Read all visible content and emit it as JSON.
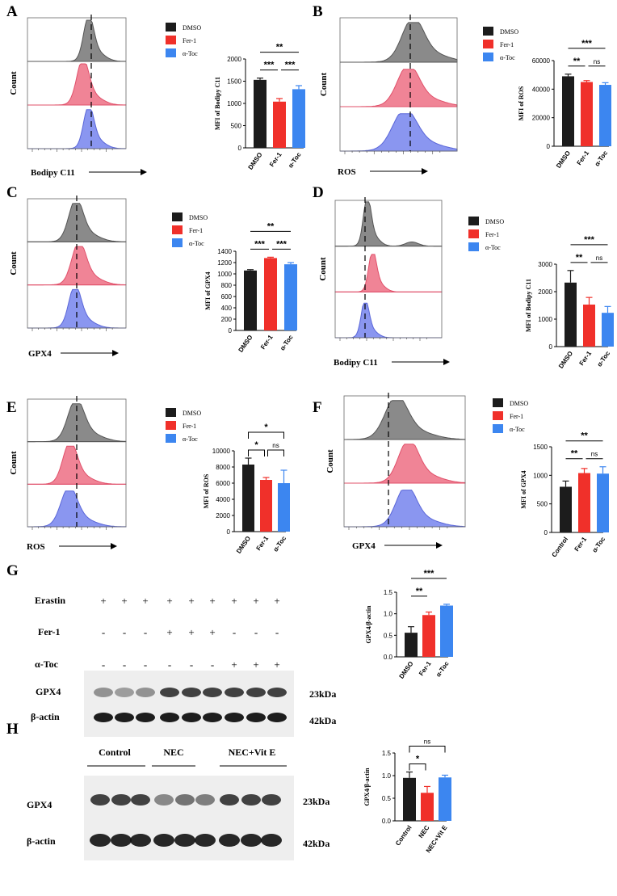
{
  "colors": {
    "black": "#1c1c1c",
    "red": "#f0302a",
    "blue": "#3c86f0",
    "hist_gray": "#8a8a8a",
    "hist_red": "#f08496",
    "hist_blue": "#8a96f0"
  },
  "legend_labels": [
    "DMSO",
    "Fer-1",
    "α-Toc"
  ],
  "panels": {
    "A": "A",
    "B": "B",
    "C": "C",
    "D": "D",
    "E": "E",
    "F": "F",
    "G": "G",
    "H": "H"
  },
  "flow_labels": {
    "count": "Count",
    "A": "Bodipy C11",
    "B": "ROS",
    "C": "GPX4",
    "D": "Bodipy C11",
    "E": "ROS",
    "F": "GPX4"
  },
  "blot_G": {
    "row_labels": [
      "Erastin",
      "Fer-1",
      "α-Toc"
    ],
    "rows": [
      [
        "+",
        "+",
        "+",
        "+",
        "+",
        "+",
        "+",
        "+",
        "+"
      ],
      [
        "-",
        "-",
        "-",
        "+",
        "+",
        "+",
        "-",
        "-",
        "-"
      ],
      [
        "-",
        "-",
        "-",
        "-",
        "-",
        "-",
        "+",
        "+",
        "+"
      ]
    ],
    "bands": [
      "GPX4",
      "β-actin"
    ],
    "sizes": [
      "23kDa",
      "42kDa"
    ]
  },
  "blot_H": {
    "groups": [
      "Control",
      "NEC",
      "NEC+Vit E"
    ],
    "bands": [
      "GPX4",
      "β-actin"
    ],
    "sizes": [
      "23kDa",
      "42kDa"
    ]
  },
  "chart_data": [
    {
      "panel": "A",
      "type": "bar",
      "categories": [
        "DMSO",
        "Fer-1",
        "α-Toc"
      ],
      "values": [
        1530,
        1040,
        1320
      ],
      "errors": [
        40,
        70,
        80
      ],
      "ylabel": "MFI of Bodipy C11",
      "ylim": [
        0,
        2000
      ],
      "yticks": [
        0,
        500,
        1000,
        1500,
        2000
      ],
      "significance": [
        {
          "from": 0,
          "to": 1,
          "label": "***"
        },
        {
          "from": 1,
          "to": 2,
          "label": "***"
        },
        {
          "from": 0,
          "to": 2,
          "label": "**"
        }
      ]
    },
    {
      "panel": "B",
      "type": "bar",
      "categories": [
        "DMSO",
        "Fer-1",
        "α-Toc"
      ],
      "values": [
        49000,
        45000,
        43000
      ],
      "errors": [
        1500,
        1000,
        1500
      ],
      "ylabel": "MFI of ROS",
      "ylim": [
        0,
        60000
      ],
      "yticks": [
        0,
        20000,
        40000,
        60000
      ],
      "significance": [
        {
          "from": 0,
          "to": 1,
          "label": "**"
        },
        {
          "from": 1,
          "to": 2,
          "label": "ns"
        },
        {
          "from": 0,
          "to": 2,
          "label": "***"
        }
      ]
    },
    {
      "panel": "C",
      "type": "bar",
      "categories": [
        "DMSO",
        "Fer-1",
        "α-Toc"
      ],
      "values": [
        1060,
        1280,
        1170
      ],
      "errors": [
        15,
        15,
        30
      ],
      "ylabel": "MFI of GPX4",
      "ylim": [
        0,
        1400
      ],
      "yticks": [
        0,
        200,
        400,
        600,
        800,
        1000,
        1200,
        1400
      ],
      "significance": [
        {
          "from": 0,
          "to": 1,
          "label": "***"
        },
        {
          "from": 1,
          "to": 2,
          "label": "***"
        },
        {
          "from": 0,
          "to": 2,
          "label": "**"
        }
      ]
    },
    {
      "panel": "D",
      "type": "bar",
      "categories": [
        "DMSO",
        "Fer-1",
        "α-Toc"
      ],
      "values": [
        2330,
        1530,
        1230
      ],
      "errors": [
        440,
        260,
        230
      ],
      "ylabel": "MFI of Bodipy C11",
      "ylim": [
        0,
        3000
      ],
      "yticks": [
        0,
        1000,
        2000,
        3000
      ],
      "significance": [
        {
          "from": 0,
          "to": 1,
          "label": "**"
        },
        {
          "from": 1,
          "to": 2,
          "label": "ns"
        },
        {
          "from": 0,
          "to": 2,
          "label": "***"
        }
      ]
    },
    {
      "panel": "E",
      "type": "bar",
      "categories": [
        "DMSO",
        "Fer-1",
        "α-Toc"
      ],
      "values": [
        8300,
        6400,
        6000
      ],
      "errors": [
        800,
        300,
        1600
      ],
      "ylabel": "MFI of ROS",
      "ylim": [
        0,
        10000
      ],
      "yticks": [
        0,
        2000,
        4000,
        6000,
        8000,
        10000
      ],
      "significance": [
        {
          "from": 0,
          "to": 1,
          "label": "*"
        },
        {
          "from": 1,
          "to": 2,
          "label": "ns"
        },
        {
          "from": 0,
          "to": 2,
          "label": "*"
        }
      ]
    },
    {
      "panel": "F",
      "type": "bar",
      "categories": [
        "Control",
        "Fer-1",
        "α-Toc"
      ],
      "values": [
        800,
        1040,
        1030
      ],
      "errors": [
        100,
        80,
        120
      ],
      "ylabel": "MFI of GPX4",
      "ylim": [
        0,
        1500
      ],
      "yticks": [
        0,
        500,
        1000,
        1500
      ],
      "significance": [
        {
          "from": 0,
          "to": 1,
          "label": "**"
        },
        {
          "from": 1,
          "to": 2,
          "label": "ns"
        },
        {
          "from": 0,
          "to": 2,
          "label": "**"
        }
      ]
    },
    {
      "panel": "G",
      "type": "bar",
      "categories": [
        "DMSO",
        "Fer-1",
        "α-Toc"
      ],
      "values": [
        0.56,
        0.97,
        1.19
      ],
      "errors": [
        0.14,
        0.07,
        0.03
      ],
      "ylabel": "GPX4/β-actin",
      "ylim": [
        0,
        1.5
      ],
      "yticks": [
        "0.0",
        "0.5",
        "1.0",
        "1.5"
      ],
      "significance": [
        {
          "from": 0,
          "to": 1,
          "label": "**"
        },
        {
          "from": 0,
          "to": 2,
          "label": "***"
        }
      ]
    },
    {
      "panel": "H",
      "type": "bar",
      "categories": [
        "Control",
        "NEC",
        "NEC+Vit E"
      ],
      "values": [
        0.95,
        0.62,
        0.96
      ],
      "errors": [
        0.13,
        0.14,
        0.05
      ],
      "ylabel": "GPX4/β-actin",
      "ylim": [
        0,
        1.5
      ],
      "yticks": [
        "0.0",
        "0.5",
        "1.0",
        "1.5"
      ],
      "significance": [
        {
          "from": 0,
          "to": 1,
          "label": "*"
        },
        {
          "from": 0,
          "to": 2,
          "label": "ns"
        }
      ]
    }
  ]
}
